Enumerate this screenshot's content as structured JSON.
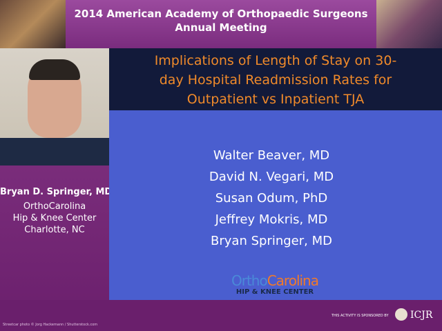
{
  "header": {
    "title_lines": [
      "2014 American Academy of Orthopaedic Surgeons",
      "Annual Meeting"
    ]
  },
  "speaker": {
    "name": "Bryan D. Springer, MD",
    "affiliation_lines": [
      "OrthoCarolina",
      "Hip & Knee Center",
      "Charlotte, NC"
    ]
  },
  "slide": {
    "title_lines": [
      "Implications of Length of Stay on 30-",
      "day Hospital Readmission Rates for",
      "Outpatient vs Inpatient TJA"
    ],
    "authors": [
      "Walter Beaver, MD",
      "David N. Vegari, MD",
      "Susan Odum, PhD",
      "Jeffrey Mokris, MD",
      "Bryan Springer, MD"
    ],
    "logo": {
      "part1": "Ortho",
      "part2": "Carolina",
      "subtitle": "HIP & KNEE CENTER"
    }
  },
  "footer": {
    "credit": "Streetcar photo © Jorg Hackemann / Shutterstock.com",
    "sponsor_label": "THIS ACTIVITY IS SPONSORED BY",
    "sponsor": "ICJR"
  }
}
